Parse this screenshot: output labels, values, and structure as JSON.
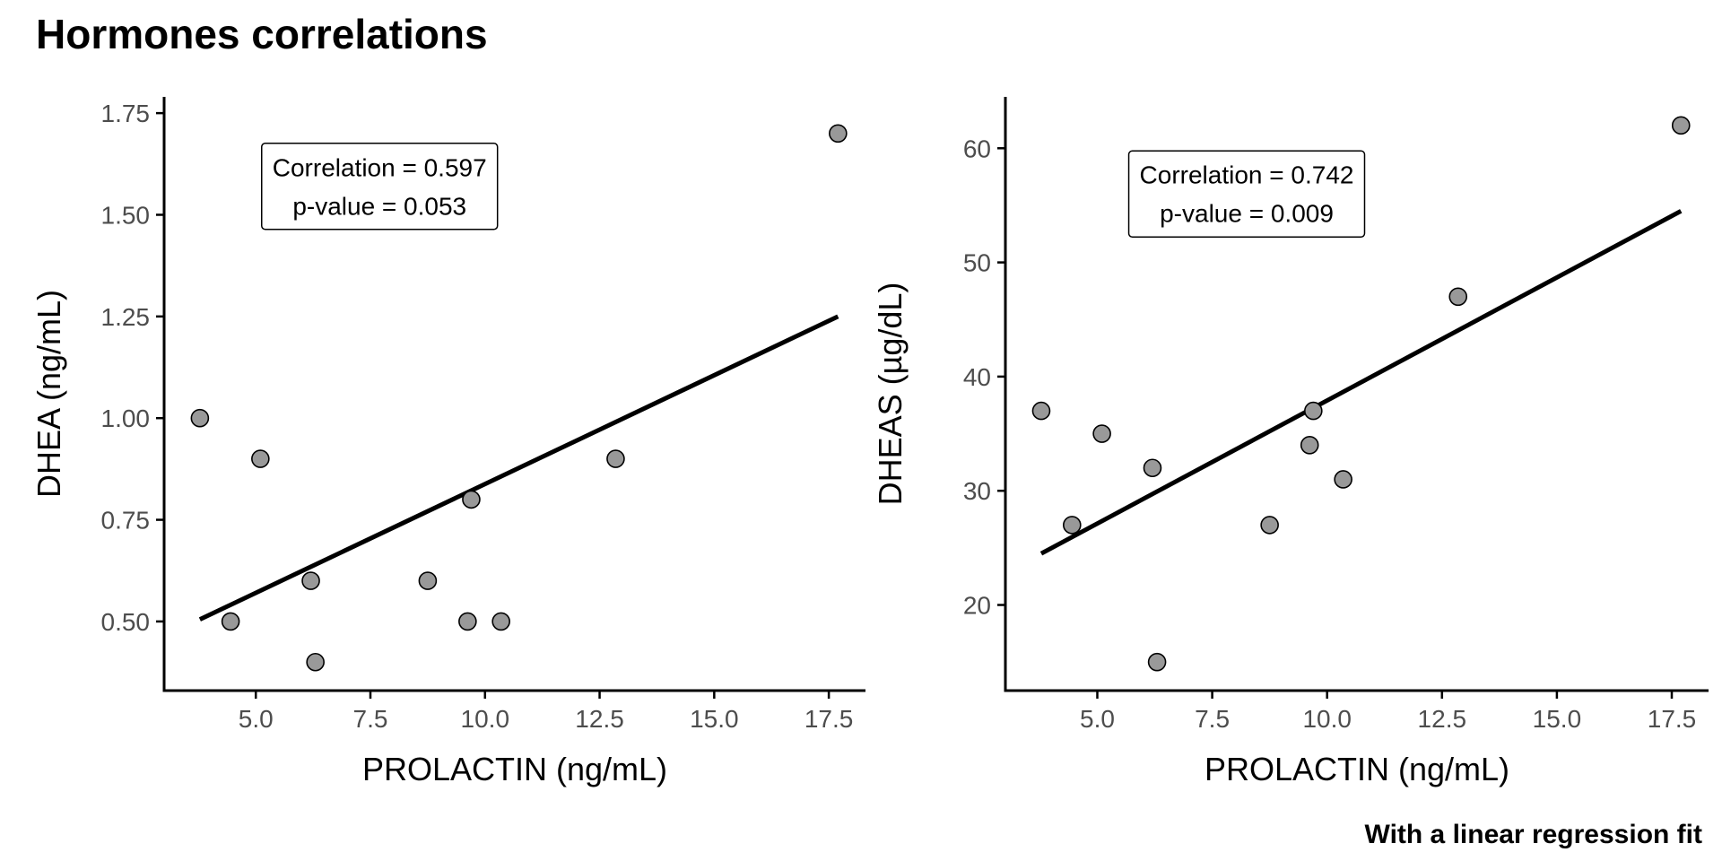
{
  "title": "Hormones correlations",
  "caption": "With a linear regression fit",
  "chart_data": [
    {
      "type": "scatter",
      "xlabel": "PROLACTIN (ng/mL)",
      "ylabel": "DHEA (ng/mL)",
      "xlim": [
        3.0,
        18.3
      ],
      "ylim": [
        0.33,
        1.79
      ],
      "xticks": [
        5.0,
        7.5,
        10.0,
        12.5,
        15.0,
        17.5
      ],
      "xtick_labels": [
        "5.0",
        "7.5",
        "10.0",
        "12.5",
        "15.0",
        "17.5"
      ],
      "yticks": [
        0.5,
        0.75,
        1.0,
        1.25,
        1.5,
        1.75
      ],
      "ytick_labels": [
        "0.50",
        "0.75",
        "1.00",
        "1.25",
        "1.50",
        "1.75"
      ],
      "grid": false,
      "point_color": "#999999",
      "points": [
        {
          "x": 3.78,
          "y": 1.0
        },
        {
          "x": 4.45,
          "y": 0.5
        },
        {
          "x": 5.1,
          "y": 0.9
        },
        {
          "x": 6.2,
          "y": 0.6
        },
        {
          "x": 6.3,
          "y": 0.4
        },
        {
          "x": 8.75,
          "y": 0.6
        },
        {
          "x": 9.62,
          "y": 0.5
        },
        {
          "x": 9.7,
          "y": 0.8
        },
        {
          "x": 10.35,
          "y": 0.5
        },
        {
          "x": 12.85,
          "y": 0.9
        },
        {
          "x": 17.7,
          "y": 1.7
        }
      ],
      "fit": {
        "x": [
          3.78,
          17.7
        ],
        "y": [
          0.505,
          1.25
        ]
      },
      "annotation": {
        "lines": [
          "Correlation = 0.597",
          "p-value = 0.053"
        ],
        "x": 7.7,
        "y": 1.57
      }
    },
    {
      "type": "scatter",
      "xlabel": "PROLACTIN (ng/mL)",
      "ylabel": "DHEAS (µg/dL)",
      "xlim": [
        3.0,
        18.3
      ],
      "ylim": [
        12.5,
        64.5
      ],
      "xticks": [
        5.0,
        7.5,
        10.0,
        12.5,
        15.0,
        17.5
      ],
      "xtick_labels": [
        "5.0",
        "7.5",
        "10.0",
        "12.5",
        "15.0",
        "17.5"
      ],
      "yticks": [
        20,
        30,
        40,
        50,
        60
      ],
      "ytick_labels": [
        "20",
        "30",
        "40",
        "50",
        "60"
      ],
      "grid": false,
      "point_color": "#999999",
      "points": [
        {
          "x": 3.78,
          "y": 37
        },
        {
          "x": 4.45,
          "y": 27
        },
        {
          "x": 5.1,
          "y": 35
        },
        {
          "x": 6.2,
          "y": 32
        },
        {
          "x": 6.3,
          "y": 15
        },
        {
          "x": 8.75,
          "y": 27
        },
        {
          "x": 9.62,
          "y": 34
        },
        {
          "x": 9.7,
          "y": 37
        },
        {
          "x": 10.35,
          "y": 31
        },
        {
          "x": 12.85,
          "y": 47
        },
        {
          "x": 17.7,
          "y": 62
        }
      ],
      "fit": {
        "x": [
          3.78,
          17.7
        ],
        "y": [
          24.5,
          54.5
        ]
      },
      "annotation": {
        "lines": [
          "Correlation = 0.742",
          "p-value = 0.009"
        ],
        "x": 8.25,
        "y": 56.0
      }
    }
  ]
}
